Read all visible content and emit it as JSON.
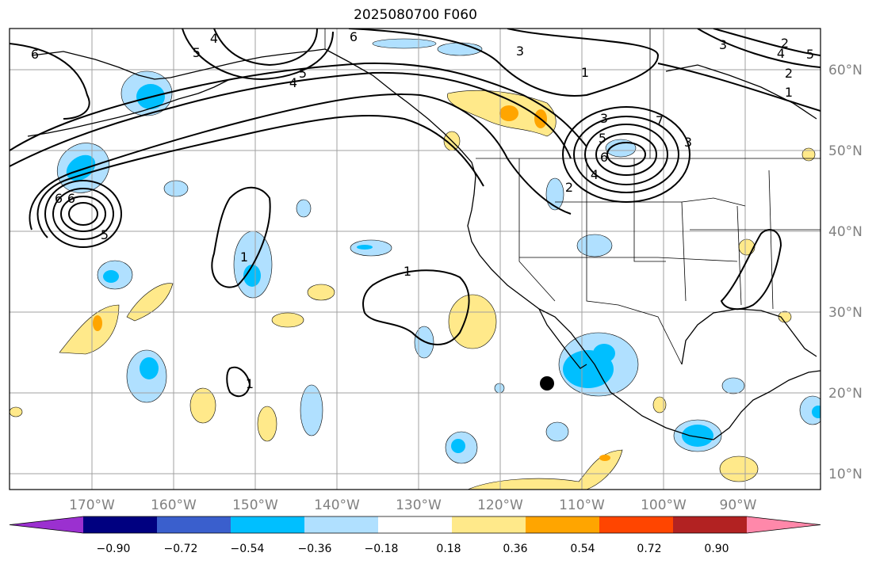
{
  "title": "2025080700 F060",
  "map": {
    "lon_range": [
      -180,
      -80
    ],
    "lat_range": [
      8,
      66
    ],
    "lon_ticks": [
      "170°W",
      "160°W",
      "150°W",
      "140°W",
      "130°W",
      "120°W",
      "110°W",
      "100°W",
      "90°W"
    ],
    "lat_ticks": [
      "60°N",
      "50°N",
      "40°N",
      "30°N",
      "20°N",
      "10°N"
    ],
    "grid": true,
    "colors": {
      "coast": "#000000",
      "grid": "#a0a0a0",
      "contour": "#000000"
    },
    "contour_labels": [
      "6",
      "5",
      "4",
      "4",
      "5",
      "6",
      "3",
      "2",
      "1",
      "1",
      "2",
      "3",
      "4",
      "5",
      "3",
      "5",
      "6",
      "7",
      "4",
      "6",
      "5",
      "6",
      "1",
      "1",
      "1",
      "2",
      "3"
    ],
    "marker": {
      "name": "black-dot-marker",
      "lon": -113.5,
      "lat": 21.2
    }
  },
  "colorbar": {
    "ticks": [
      "−0.90",
      "−0.72",
      "−0.54",
      "−0.36",
      "−0.18",
      "0.18",
      "0.36",
      "0.54",
      "0.72",
      "0.90"
    ],
    "colors": [
      "#9b30d0",
      "#000080",
      "#3a5fcd",
      "#00bfff",
      "#b0e0ff",
      "#ffffff",
      "#ffe98a",
      "#ffa500",
      "#ff4500",
      "#b22222",
      "#ff88aa"
    ],
    "extend": "both"
  }
}
